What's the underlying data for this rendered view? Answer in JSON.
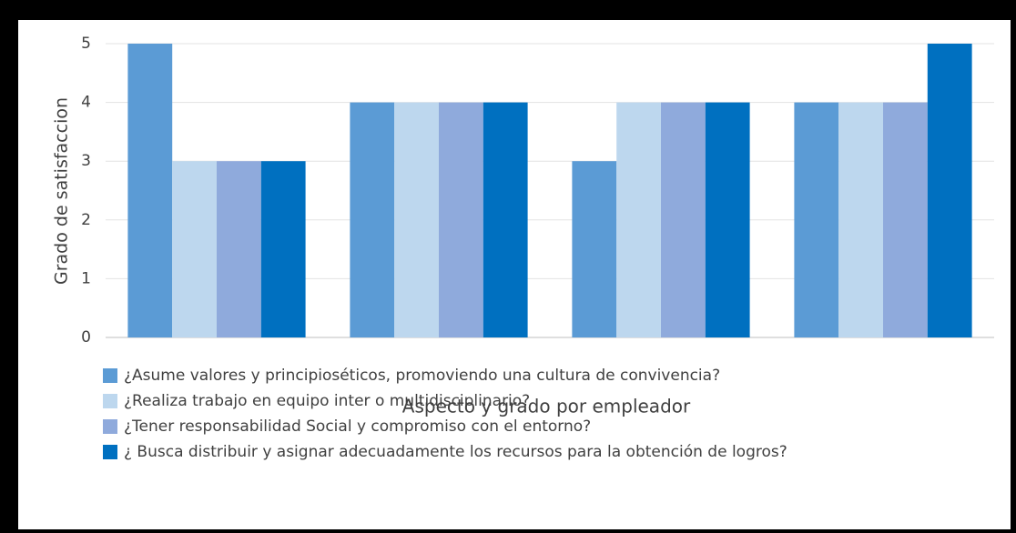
{
  "chart_data": {
    "type": "bar",
    "categories": [
      null,
      null,
      null,
      null
    ],
    "series": [
      {
        "name": "¿Asume valores y principioséticos, promoviendo una cultura de convivencia?",
        "color": "#5b9bd5",
        "values": [
          5,
          4,
          3,
          4
        ]
      },
      {
        "name": "¿Realiza trabajo en equipo inter o multidisciplinario?",
        "color": "#bdd7ee",
        "values": [
          3,
          4,
          4,
          4
        ]
      },
      {
        "name": "¿Tener responsabilidad Social y compromiso con el entorno?",
        "color": "#8faadc",
        "values": [
          3,
          4,
          4,
          4
        ]
      },
      {
        "name": "¿ Busca distribuir y asignar adecuadamente los recursos para la obtención de logros?",
        "color": "#0070c0",
        "values": [
          3,
          4,
          4,
          5
        ]
      }
    ],
    "y_label": "Grado de satisfaccion",
    "x_label": "Aspecto y grado por empleador",
    "ylim": [
      0,
      5
    ],
    "yticks": [
      0,
      1,
      2,
      3,
      4,
      5
    ],
    "grid": true,
    "legend": "bottom"
  }
}
